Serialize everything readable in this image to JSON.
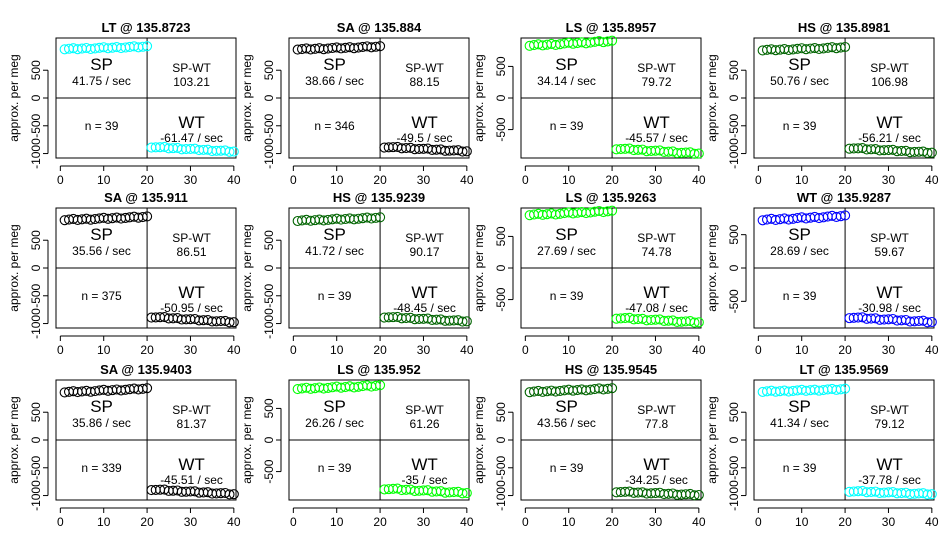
{
  "chart_data": [
    {
      "type": "scatter",
      "title": "LT @ 135.8723",
      "color": "#00ffff",
      "ylabel": "approx. per meg",
      "ylim": [
        -1080,
        1080
      ],
      "yticks": [
        -1000,
        -500,
        0,
        500
      ],
      "xlim": [
        -1,
        40.5
      ],
      "xticks": [
        0,
        10,
        20,
        30,
        40
      ],
      "sp_label": "SP",
      "sp_rate": "41.75 / sec",
      "spwt_label": "SP-WT",
      "spwt_value": "103.21",
      "wt_label": "WT",
      "wt_rate": "-61.47 / sec",
      "n_label": "n = 39",
      "sp_start": 880,
      "sp_end": 925,
      "wt_start": -880,
      "wt_end": -965
    },
    {
      "type": "scatter",
      "title": "SA @ 135.884",
      "color": "#000000",
      "ylabel": "approx. per meg",
      "ylim": [
        -1080,
        1080
      ],
      "yticks": [
        -1000,
        -500,
        0,
        500
      ],
      "xlim": [
        -1,
        40.5
      ],
      "xticks": [
        0,
        10,
        20,
        30,
        40
      ],
      "sp_label": "SP",
      "sp_rate": "38.66 / sec",
      "spwt_label": "SP-WT",
      "spwt_value": "88.15",
      "wt_label": "WT",
      "wt_rate": "-49.5 / sec",
      "n_label": "n = 346",
      "sp_start": 875,
      "sp_end": 925,
      "wt_start": -880,
      "wt_end": -960
    },
    {
      "type": "scatter",
      "title": "LS @ 135.8957",
      "color": "#00ff00",
      "ylabel": "approx. per meg",
      "ylim": [
        -950,
        950
      ],
      "yticks": [
        -500,
        0,
        500
      ],
      "xlim": [
        -1,
        40.5
      ],
      "xticks": [
        0,
        10,
        20,
        30,
        40
      ],
      "sp_label": "SP",
      "sp_rate": "34.14 / sec",
      "spwt_label": "SP-WT",
      "spwt_value": "79.72",
      "wt_label": "WT",
      "wt_rate": "-45.57 / sec",
      "n_label": "n = 39",
      "sp_start": 830,
      "sp_end": 900,
      "wt_start": -800,
      "wt_end": -880
    },
    {
      "type": "scatter",
      "title": "HS @ 135.8981",
      "color": "#006400",
      "ylabel": "approx. per meg",
      "ylim": [
        -1080,
        1080
      ],
      "yticks": [
        -1000,
        -500,
        0,
        500
      ],
      "xlim": [
        -1,
        40.5
      ],
      "xticks": [
        0,
        10,
        20,
        30,
        40
      ],
      "sp_label": "SP",
      "sp_rate": "50.76 / sec",
      "spwt_label": "SP-WT",
      "spwt_value": "106.98",
      "wt_label": "WT",
      "wt_rate": "-56.21 / sec",
      "n_label": "n = 39",
      "sp_start": 860,
      "sp_end": 910,
      "wt_start": -900,
      "wt_end": -985
    },
    {
      "type": "scatter",
      "title": "SA @ 135.911",
      "color": "#000000",
      "ylabel": "approx. per meg",
      "ylim": [
        -1080,
        1080
      ],
      "yticks": [
        -1000,
        -500,
        0,
        500
      ],
      "xlim": [
        -1,
        40.5
      ],
      "xticks": [
        0,
        10,
        20,
        30,
        40
      ],
      "sp_label": "SP",
      "sp_rate": "35.56 / sec",
      "spwt_label": "SP-WT",
      "spwt_value": "86.51",
      "wt_label": "WT",
      "wt_rate": "-50.95 / sec",
      "n_label": "n = 375",
      "sp_start": 865,
      "sp_end": 920,
      "wt_start": -880,
      "wt_end": -975
    },
    {
      "type": "scatter",
      "title": "HS @ 135.9239",
      "color": "#006400",
      "ylabel": "approx. per meg",
      "ylim": [
        -1080,
        1080
      ],
      "yticks": [
        -1000,
        -500,
        0,
        500
      ],
      "xlim": [
        -1,
        40.5
      ],
      "xticks": [
        0,
        10,
        20,
        30,
        40
      ],
      "sp_label": "SP",
      "sp_rate": "41.72 / sec",
      "spwt_label": "SP-WT",
      "spwt_value": "90.17",
      "wt_label": "WT",
      "wt_rate": "-48.45 / sec",
      "n_label": "n = 39",
      "sp_start": 850,
      "sp_end": 905,
      "wt_start": -880,
      "wt_end": -960
    },
    {
      "type": "scatter",
      "title": "LS @ 135.9263",
      "color": "#00ff00",
      "ylabel": "approx. per meg",
      "ylim": [
        -950,
        950
      ],
      "yticks": [
        -500,
        0,
        500
      ],
      "xlim": [
        -1,
        40.5
      ],
      "xticks": [
        0,
        10,
        20,
        30,
        40
      ],
      "sp_label": "SP",
      "sp_rate": "27.69 / sec",
      "spwt_label": "SP-WT",
      "spwt_value": "74.78",
      "wt_label": "WT",
      "wt_rate": "-47.08 / sec",
      "n_label": "n = 39",
      "sp_start": 840,
      "sp_end": 900,
      "wt_start": -790,
      "wt_end": -860
    },
    {
      "type": "scatter",
      "title": "WT @ 135.9287",
      "color": "#0000ff",
      "ylabel": "approx. per meg",
      "ylim": [
        -900,
        900
      ],
      "yticks": [
        -500,
        0,
        500
      ],
      "xlim": [
        -1,
        40.5
      ],
      "xticks": [
        0,
        10,
        20,
        30,
        40
      ],
      "sp_label": "SP",
      "sp_rate": "28.69 / sec",
      "spwt_label": "SP-WT",
      "spwt_value": "59.67",
      "wt_label": "WT",
      "wt_rate": "-30.98 / sec",
      "n_label": "n = 39",
      "sp_start": 720,
      "sp_end": 780,
      "wt_start": -740,
      "wt_end": -810
    },
    {
      "type": "scatter",
      "title": "SA @ 135.9403",
      "color": "#000000",
      "ylabel": "approx. per meg",
      "ylim": [
        -1080,
        1080
      ],
      "yticks": [
        -1000,
        -500,
        0,
        500
      ],
      "xlim": [
        -1,
        40.5
      ],
      "xticks": [
        0,
        10,
        20,
        30,
        40
      ],
      "sp_label": "SP",
      "sp_rate": "35.86 / sec",
      "spwt_label": "SP-WT",
      "spwt_value": "81.37",
      "wt_label": "WT",
      "wt_rate": "-45.51 / sec",
      "n_label": "n = 339",
      "sp_start": 860,
      "sp_end": 925,
      "wt_start": -890,
      "wt_end": -975
    },
    {
      "type": "scatter",
      "title": "LS @ 135.952",
      "color": "#00ff00",
      "ylabel": "approx. per meg",
      "ylim": [
        -950,
        950
      ],
      "yticks": [
        -500,
        0,
        500
      ],
      "xlim": [
        -1,
        40.5
      ],
      "xticks": [
        0,
        10,
        20,
        30,
        40
      ],
      "sp_label": "SP",
      "sp_rate": "26.26 / sec",
      "spwt_label": "SP-WT",
      "spwt_value": "61.26",
      "wt_label": "WT",
      "wt_rate": "-35 / sec",
      "n_label": "n = 39",
      "sp_start": 810,
      "sp_end": 860,
      "wt_start": -770,
      "wt_end": -840
    },
    {
      "type": "scatter",
      "title": "HS @ 135.9545",
      "color": "#006400",
      "ylabel": "approx. per meg",
      "ylim": [
        -1080,
        1080
      ],
      "yticks": [
        -1000,
        -500,
        0,
        500
      ],
      "xlim": [
        -1,
        40.5
      ],
      "xticks": [
        0,
        10,
        20,
        30,
        40
      ],
      "sp_label": "SP",
      "sp_rate": "43.56 / sec",
      "spwt_label": "SP-WT",
      "spwt_value": "77.8",
      "wt_label": "WT",
      "wt_rate": "-34.25 / sec",
      "n_label": "n = 39",
      "sp_start": 865,
      "sp_end": 925,
      "wt_start": -930,
      "wt_end": -990
    },
    {
      "type": "scatter",
      "title": "LT @ 135.9569",
      "color": "#00ffff",
      "ylabel": "approx. per meg",
      "ylim": [
        -1080,
        1080
      ],
      "yticks": [
        -1000,
        -500,
        0,
        500
      ],
      "xlim": [
        -1,
        40.5
      ],
      "xticks": [
        0,
        10,
        20,
        30,
        40
      ],
      "sp_label": "SP",
      "sp_rate": "41.34 / sec",
      "spwt_label": "SP-WT",
      "spwt_value": "79.12",
      "wt_label": "WT",
      "wt_rate": "-37.78 / sec",
      "n_label": "n = 39",
      "sp_start": 870,
      "sp_end": 915,
      "wt_start": -920,
      "wt_end": -975
    }
  ]
}
